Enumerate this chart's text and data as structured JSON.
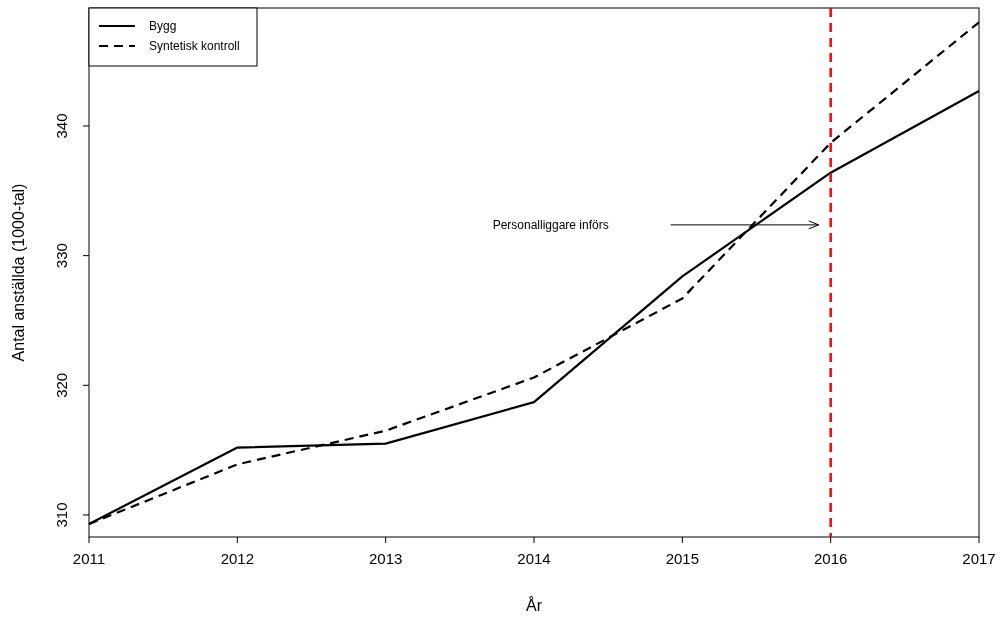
{
  "chart_data": {
    "type": "line",
    "xlabel": "År",
    "ylabel": "Antal anställda (1000-tal)",
    "xlim": [
      2011,
      2017
    ],
    "xticks": [
      2011,
      2012,
      2013,
      2014,
      2015,
      2016,
      2017
    ],
    "ylim": [
      308.3,
      349.1
    ],
    "yticks": [
      310,
      320,
      330,
      340
    ],
    "grid": false,
    "legend": "top left",
    "series": [
      {
        "name": "Bygg",
        "color": "#000000",
        "line_style": "solid",
        "x": [
          2011,
          2012,
          2013,
          2014,
          2015,
          2016,
          2017
        ],
        "values": [
          309.3,
          315.2,
          315.5,
          318.7,
          328.4,
          336.4,
          342.7
        ]
      },
      {
        "name": "Syntetisk kontroll",
        "color": "#000000",
        "line_style": "dashed",
        "x": [
          2011,
          2012,
          2013,
          2014,
          2015,
          2015.5,
          2016,
          2017
        ],
        "values": [
          309.3,
          313.9,
          316.5,
          320.6,
          326.7,
          332.7,
          338.7,
          348.0
        ]
      }
    ],
    "ref_lines": [
      {
        "axis": "x",
        "value": 2016,
        "color": "#ff0000",
        "line_style": "dashed"
      }
    ],
    "annotations": [
      "Personalliggare införs"
    ]
  }
}
